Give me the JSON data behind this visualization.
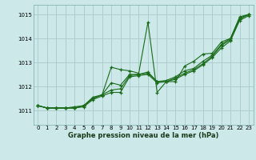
{
  "title": "Graphe pression niveau de la mer (hPa)",
  "bg_color": "#cce8e8",
  "grid_color": "#aacaca",
  "line_color": "#1a6b1a",
  "xlim": [
    -0.5,
    23.5
  ],
  "ylim": [
    1010.4,
    1015.4
  ],
  "yticks": [
    1011,
    1012,
    1013,
    1014,
    1015
  ],
  "xticks": [
    0,
    1,
    2,
    3,
    4,
    5,
    6,
    7,
    8,
    9,
    10,
    11,
    12,
    13,
    14,
    15,
    16,
    17,
    18,
    19,
    20,
    21,
    22,
    23
  ],
  "series": [
    [
      1011.2,
      1011.1,
      1011.1,
      1011.1,
      1011.1,
      1011.2,
      1011.55,
      1011.65,
      1012.8,
      1012.7,
      1012.65,
      1012.55,
      1014.68,
      1011.75,
      1012.2,
      1012.2,
      1012.85,
      1013.05,
      1013.35,
      1013.38,
      1013.85,
      1014.0,
      1014.9,
      1015.0
    ],
    [
      1011.2,
      1011.1,
      1011.1,
      1011.1,
      1011.15,
      1011.2,
      1011.5,
      1011.65,
      1012.15,
      1012.05,
      1012.5,
      1012.5,
      1012.6,
      1012.2,
      1012.25,
      1012.4,
      1012.65,
      1012.75,
      1013.05,
      1013.3,
      1013.75,
      1014.0,
      1014.85,
      1015.0
    ],
    [
      1011.2,
      1011.1,
      1011.1,
      1011.1,
      1011.1,
      1011.2,
      1011.5,
      1011.65,
      1011.85,
      1011.9,
      1012.45,
      1012.5,
      1012.55,
      1012.2,
      1012.2,
      1012.35,
      1012.55,
      1012.7,
      1012.95,
      1013.25,
      1013.7,
      1013.95,
      1014.8,
      1015.0
    ],
    [
      1011.2,
      1011.1,
      1011.1,
      1011.1,
      1011.1,
      1011.15,
      1011.45,
      1011.6,
      1011.75,
      1011.75,
      1012.4,
      1012.45,
      1012.5,
      1012.15,
      1012.2,
      1012.3,
      1012.5,
      1012.65,
      1012.9,
      1013.2,
      1013.6,
      1013.9,
      1014.75,
      1014.95
    ]
  ]
}
